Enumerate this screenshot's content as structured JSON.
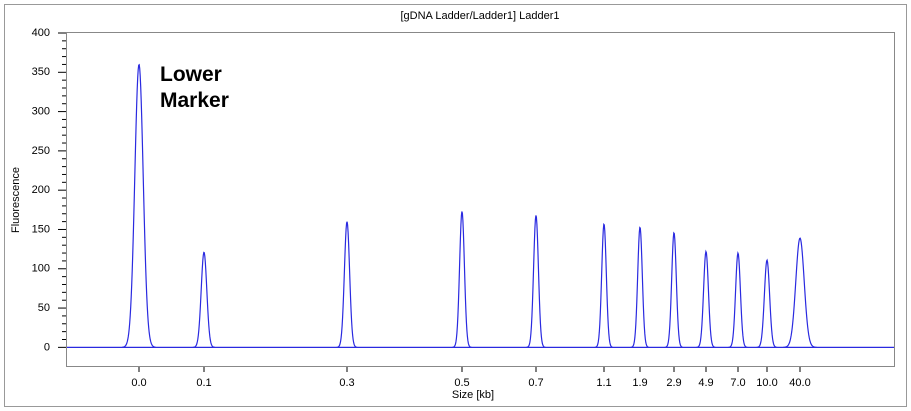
{
  "chart_data": {
    "type": "line",
    "title": "[gDNA Ladder/Ladder1] Ladder1",
    "xlabel": "Size [kb]",
    "ylabel": "Fluorescence",
    "annotation": "Lower Marker",
    "categories": [
      "0.0",
      "0.1",
      "0.3",
      "0.5",
      "0.7",
      "1.1",
      "1.9",
      "2.9",
      "4.9",
      "7.0",
      "10.0",
      "40.0"
    ],
    "values": [
      360,
      121,
      160,
      173,
      168,
      157,
      153,
      146,
      122,
      120,
      111,
      139
    ],
    "color": "#2a2ae0",
    "ylim": [
      -25,
      400
    ],
    "yticks": [
      0,
      50,
      100,
      150,
      200,
      250,
      300,
      350,
      400
    ]
  }
}
